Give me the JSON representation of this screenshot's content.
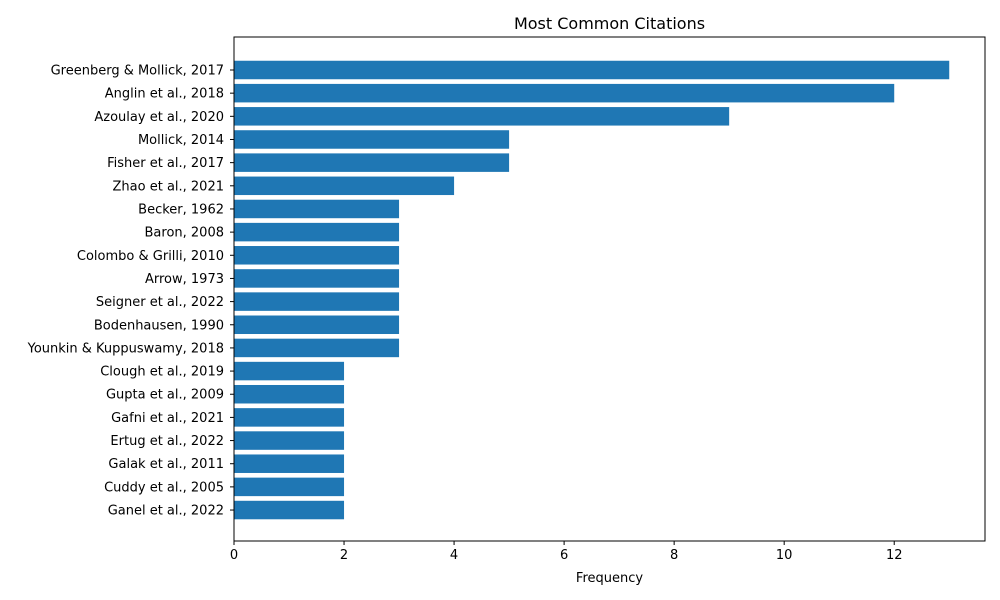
{
  "chart_data": {
    "type": "bar",
    "orientation": "horizontal",
    "title": "Most Common Citations",
    "xlabel": "Frequency",
    "ylabel": "",
    "xlim": [
      0,
      13.65
    ],
    "xticks": [
      0,
      2,
      4,
      6,
      8,
      10,
      12
    ],
    "grid": false,
    "bar_color": "#1f77b4",
    "categories": [
      "Greenberg & Mollick, 2017",
      "Anglin et al., 2018",
      "Azoulay et al., 2020",
      "Mollick, 2014",
      "Fisher et al., 2017",
      "Zhao et al., 2021",
      "Becker, 1962",
      "Baron, 2008",
      "Colombo & Grilli, 2010",
      "Arrow, 1973",
      "Seigner et al., 2022",
      "Bodenhausen, 1990",
      "Younkin & Kuppuswamy, 2018",
      "Clough et al., 2019",
      "Gupta et al., 2009",
      "Gafni et al., 2021",
      "Ertug et al., 2022",
      "Galak et al., 2011",
      "Cuddy et al., 2005",
      "Ganel et al., 2022"
    ],
    "values": [
      13,
      12,
      9,
      5,
      5,
      4,
      3,
      3,
      3,
      3,
      3,
      3,
      3,
      2,
      2,
      2,
      2,
      2,
      2,
      2
    ]
  }
}
